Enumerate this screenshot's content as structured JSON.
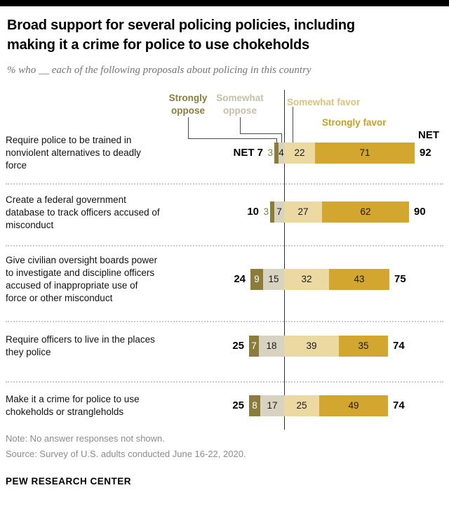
{
  "header": {
    "title_lines": [
      "Broad support for several policing policies, including",
      "making it a crime for police to use chokeholds"
    ],
    "subtitle": "% who __ each of the following proposals about policing in this country"
  },
  "legend": {
    "strongly_oppose": "Strongly\noppose",
    "somewhat_oppose": "Somewhat\noppose",
    "somewhat_favor": "Somewhat favor",
    "strongly_favor": "Strongly favor",
    "net": "NET"
  },
  "colors": {
    "strongly_oppose": "#8b7c3a",
    "somewhat_oppose": "#d8d2c0",
    "somewhat_favor": "#ecd9a2",
    "strongly_favor": "#d2a62f",
    "strongly_oppose_label": "#8b7c3a",
    "somewhat_oppose_label": "#c6bfa8",
    "somewhat_favor_label": "#e0c179",
    "strongly_favor_label": "#c89e24",
    "segment_text_dark": "#1a1a1a",
    "segment_text_light": "#ffffff"
  },
  "chart_data": {
    "type": "bar",
    "subtype": "diverging_stacked_horizontal",
    "unit": "percent",
    "title": "Broad support for several policing policies, including making it a crime for police to use chokeholds",
    "subtitle": "% who __ each of the following proposals about policing in this country",
    "legend_entries": [
      "Strongly oppose",
      "Somewhat oppose",
      "Somewhat favor",
      "Strongly favor"
    ],
    "categories": [
      "Require police to be trained in nonviolent alternatives to deadly force",
      "Create a federal government database to track officers accused of misconduct",
      "Give civilian oversight boards power to investigate and discipline officers accused of inappropriate use of force or other misconduct",
      "Require officers to live in the places they police",
      "Make it a crime for police to use chokeholds or strangleholds"
    ],
    "series": [
      {
        "name": "Strongly oppose",
        "values": [
          3,
          3,
          9,
          7,
          8
        ]
      },
      {
        "name": "Somewhat oppose",
        "values": [
          4,
          7,
          15,
          18,
          17
        ]
      },
      {
        "name": "Somewhat favor",
        "values": [
          22,
          27,
          32,
          39,
          25
        ]
      },
      {
        "name": "Strongly favor",
        "values": [
          71,
          62,
          43,
          35,
          49
        ]
      }
    ],
    "net_oppose": [
      7,
      10,
      24,
      25,
      25
    ],
    "net_favor": [
      92,
      90,
      75,
      74,
      74
    ],
    "net_label": "NET",
    "axis_note": "oppose values extend left of center line, favor values extend right"
  },
  "footer": {
    "note": "Note: No answer responses not shown.",
    "source": "Source: Survey of U.S. adults conducted June 16-22, 2020.",
    "brand": "PEW RESEARCH CENTER"
  }
}
